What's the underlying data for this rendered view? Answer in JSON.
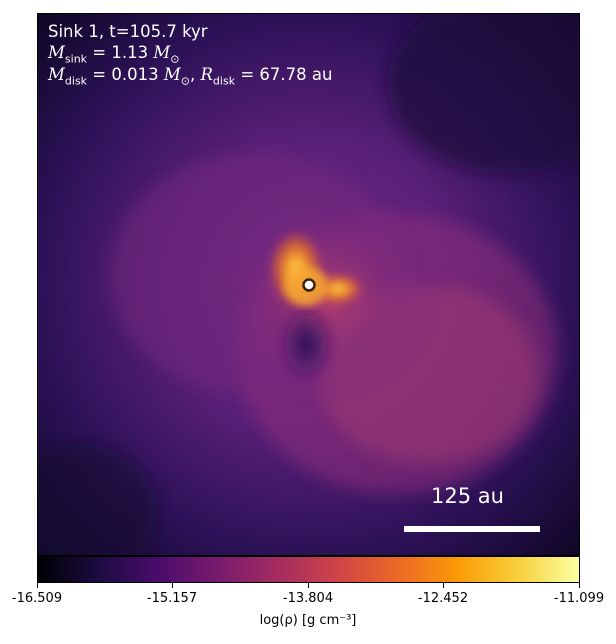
{
  "info": {
    "line1": "Sink 1, t=105.7 kyr",
    "m_sink_label": "M",
    "m_sink_sub": "sink",
    "m_sink_value": "= 1.13",
    "m_sink_unit": "M",
    "m_sink_unit_sub": "⊙",
    "m_disk_label": "M",
    "m_disk_sub": "disk",
    "m_disk_value": "= 0.013",
    "m_disk_unit": "M",
    "m_disk_unit_sub": "⊙",
    "r_disk_label": "R",
    "r_disk_sub": "disk",
    "r_disk_value": "= 67.78 au"
  },
  "scalebar": {
    "label": "125 au"
  },
  "colorbar": {
    "ticks": [
      "-16.509",
      "-15.157",
      "-13.804",
      "-12.452",
      "-11.099"
    ],
    "label": "log(ρ) [g cm⁻³]",
    "colormap": "inferno"
  }
}
